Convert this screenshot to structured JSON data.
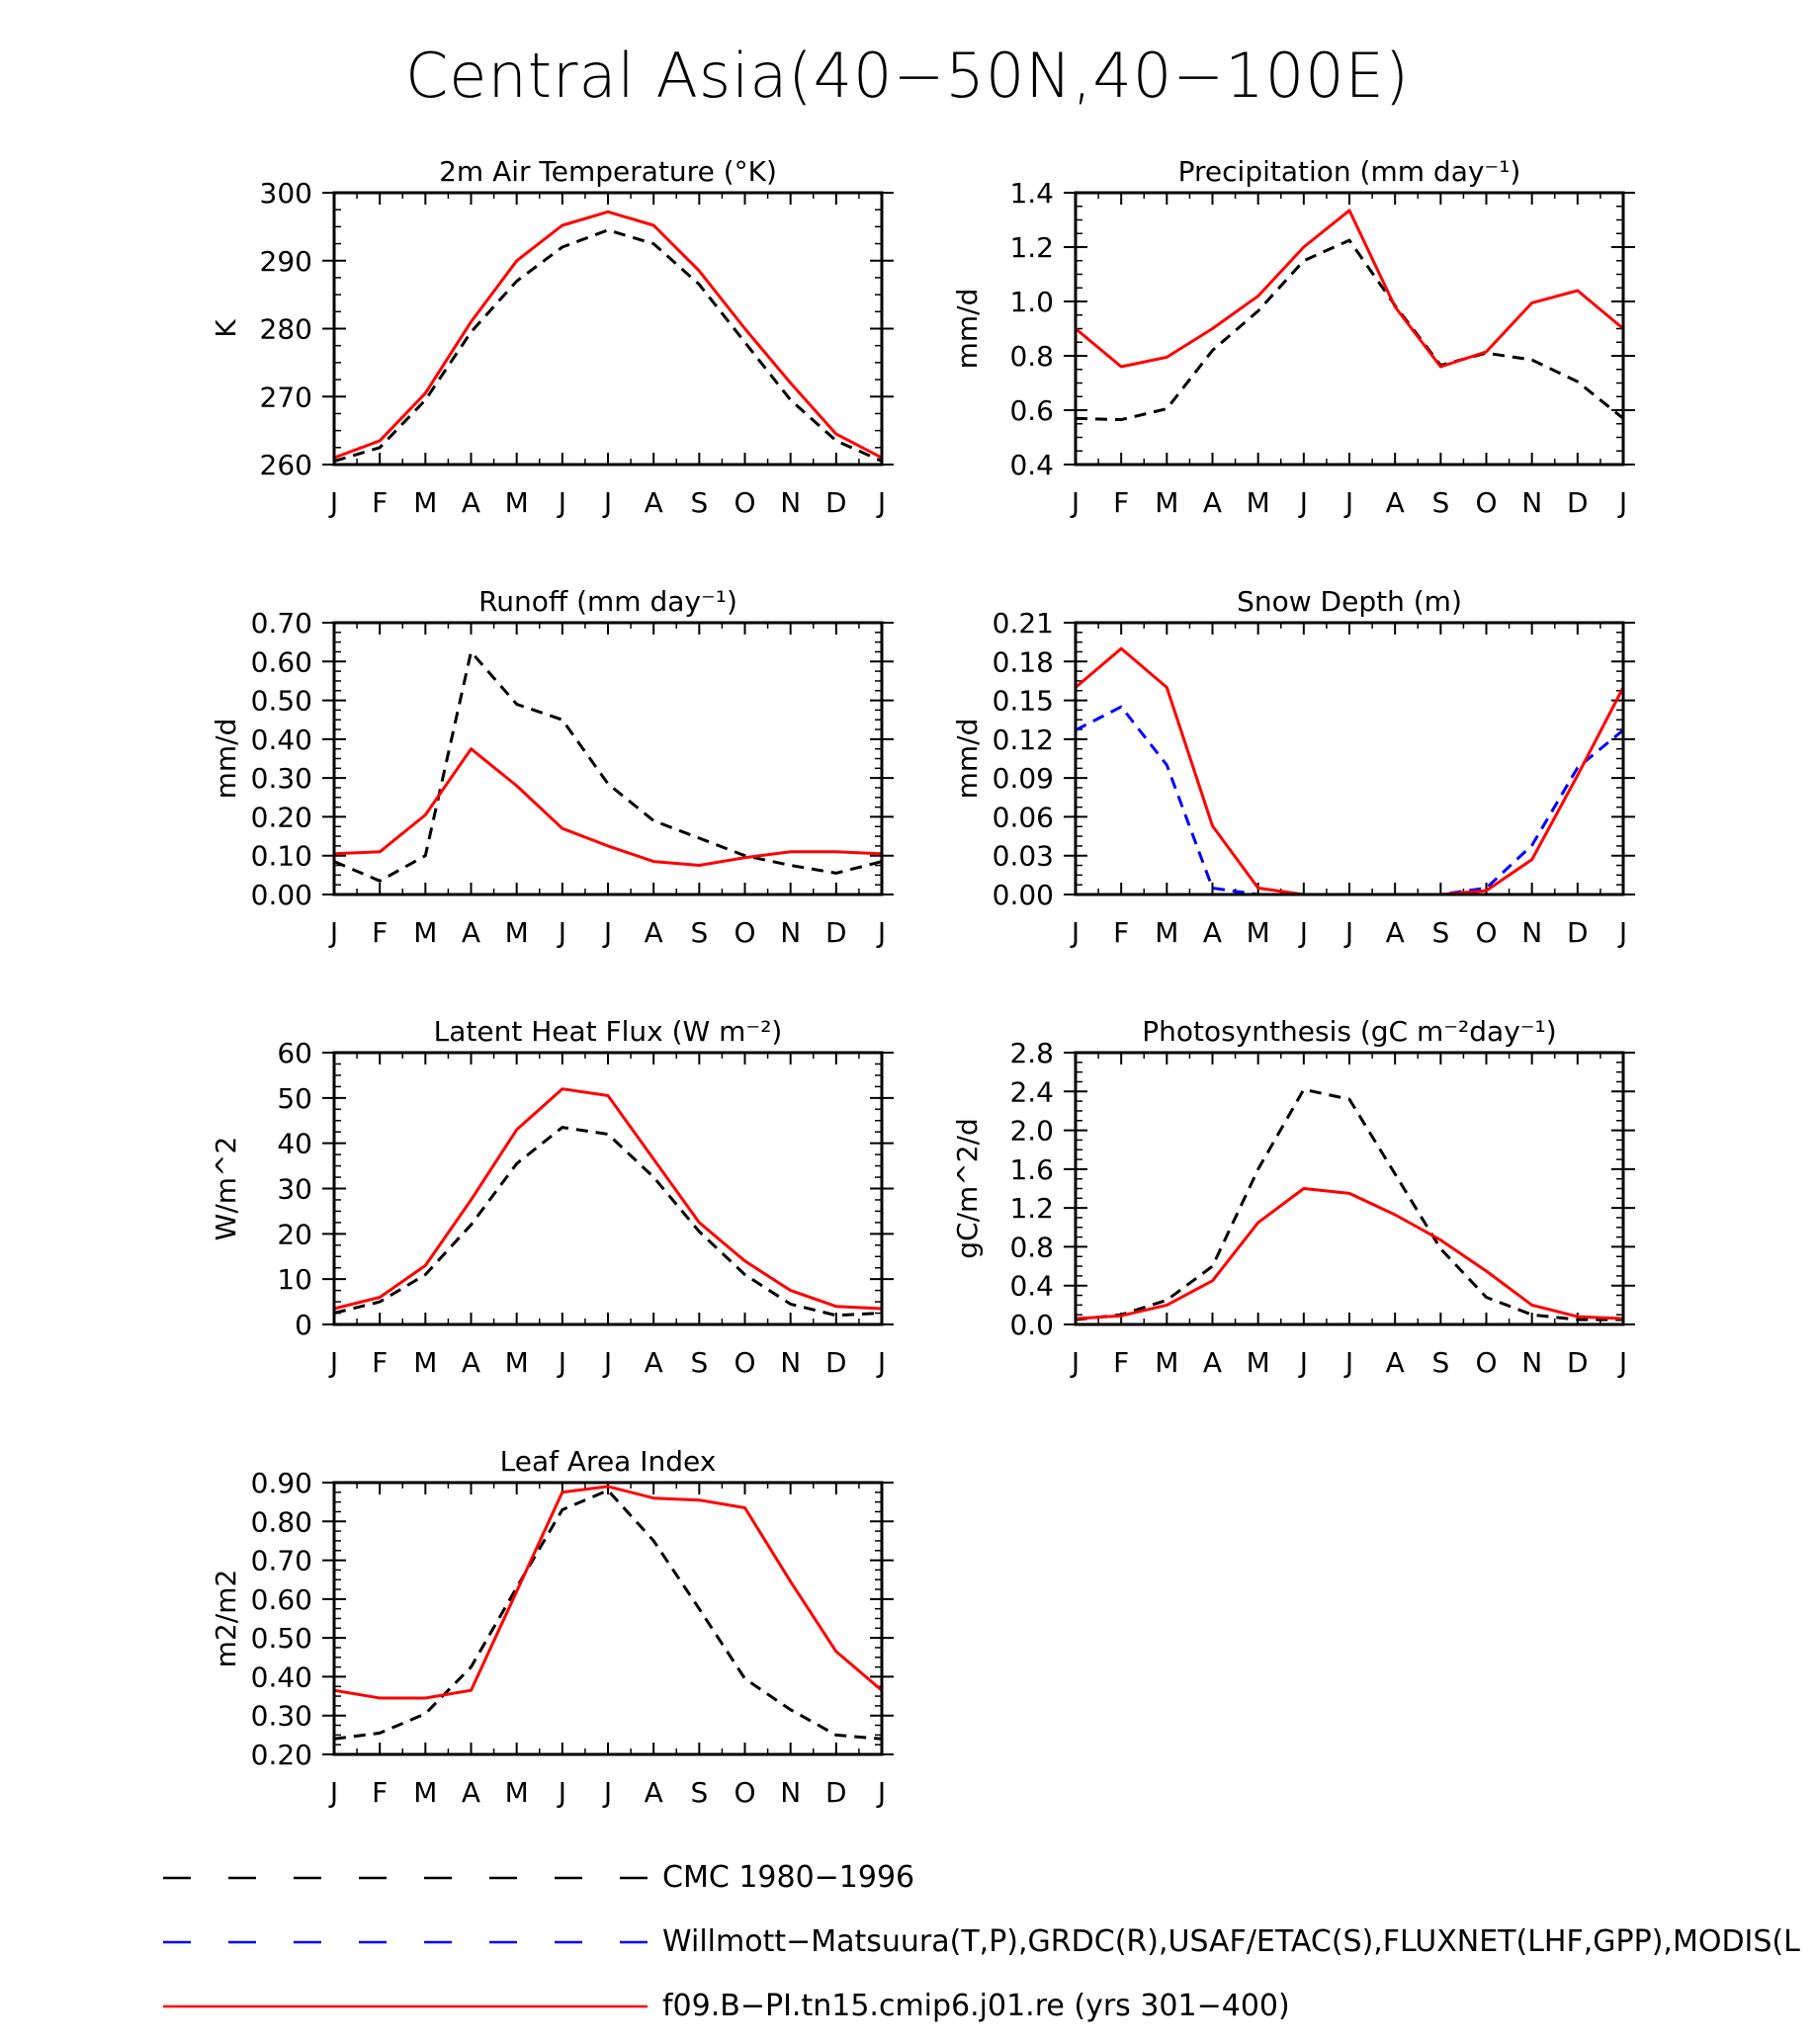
{
  "title": "Central Asia(40−50N,40−100E)",
  "colors": {
    "obs": "#000000",
    "obs2": "#0000ff",
    "model": "#ff0000"
  },
  "months": [
    "J",
    "F",
    "M",
    "A",
    "M",
    "J",
    "J",
    "A",
    "S",
    "O",
    "N",
    "D",
    "J"
  ],
  "legend": [
    {
      "label": "CMC 1980−1996",
      "color": "#000000",
      "style": "dashed"
    },
    {
      "label": "Willmott−Matsuura(T,P),GRDC(R),USAF/ETAC(S),FLUXNET(LHF,GPP),MODIS(L",
      "color": "#0000ff",
      "style": "dashed"
    },
    {
      "label": "f09.B−PI.tn15.cmip6.j01.re (yrs 301−400)",
      "color": "#ff0000",
      "style": "solid"
    }
  ],
  "chart_data": [
    {
      "type": "line",
      "title": "2m Air Temperature (°K)",
      "ylabel": "K",
      "ylim": [
        260,
        300
      ],
      "yticks": [
        "260",
        "270",
        "280",
        "290",
        "300"
      ],
      "x": [
        "J",
        "F",
        "M",
        "A",
        "M",
        "J",
        "J",
        "A",
        "S",
        "O",
        "N",
        "D",
        "J"
      ],
      "series": [
        {
          "values": [
            260.5,
            262.5,
            269.5,
            279.5,
            287,
            292,
            294.5,
            292.5,
            286.5,
            278,
            269.5,
            263.5,
            260.5
          ],
          "color": "#000000",
          "dash": true
        },
        {
          "values": [
            261,
            263.5,
            270.5,
            281,
            290,
            295.2,
            297.2,
            295.2,
            288.5,
            280,
            272,
            264.5,
            261
          ],
          "color": "#ff0000",
          "dash": false
        }
      ]
    },
    {
      "type": "line",
      "title": "Precipitation (mm day⁻¹)",
      "ylabel": "mm/d",
      "ylim": [
        0.4,
        1.4
      ],
      "yticks": [
        "0.4",
        "0.6",
        "0.8",
        "1.0",
        "1.2",
        "1.4"
      ],
      "x": [
        "J",
        "F",
        "M",
        "A",
        "M",
        "J",
        "J",
        "A",
        "S",
        "O",
        "N",
        "D",
        "J"
      ],
      "series": [
        {
          "values": [
            0.57,
            0.565,
            0.605,
            0.82,
            0.965,
            1.15,
            1.225,
            0.985,
            0.765,
            0.81,
            0.785,
            0.705,
            0.57
          ],
          "color": "#000000",
          "dash": true
        },
        {
          "values": [
            0.9,
            0.76,
            0.795,
            0.9,
            1.02,
            1.2,
            1.335,
            0.98,
            0.76,
            0.815,
            0.995,
            1.04,
            0.9
          ],
          "color": "#ff0000",
          "dash": false
        }
      ]
    },
    {
      "type": "line",
      "title": "Runoff (mm day⁻¹)",
      "ylabel": "mm/d",
      "ylim": [
        0,
        0.7
      ],
      "yticks": [
        "0.00",
        "0.10",
        "0.20",
        "0.30",
        "0.40",
        "0.50",
        "0.60",
        "0.70"
      ],
      "x": [
        "J",
        "F",
        "M",
        "A",
        "M",
        "J",
        "J",
        "A",
        "S",
        "O",
        "N",
        "D",
        "J"
      ],
      "series": [
        {
          "values": [
            0.085,
            0.035,
            0.1,
            0.625,
            0.49,
            0.45,
            0.285,
            0.19,
            0.145,
            0.1,
            0.075,
            0.055,
            0.085
          ],
          "color": "#000000",
          "dash": true
        },
        {
          "values": [
            0.105,
            0.11,
            0.205,
            0.375,
            0.28,
            0.17,
            0.125,
            0.085,
            0.075,
            0.095,
            0.11,
            0.11,
            0.105
          ],
          "color": "#ff0000",
          "dash": false
        }
      ]
    },
    {
      "type": "line",
      "title": "Snow Depth (m)",
      "ylabel": "mm/d",
      "ylim": [
        0,
        0.21
      ],
      "yticks": [
        "0.00",
        "0.03",
        "0.06",
        "0.09",
        "0.12",
        "0.15",
        "0.18",
        "0.21"
      ],
      "x": [
        "J",
        "F",
        "M",
        "A",
        "M",
        "J",
        "J",
        "A",
        "S",
        "O",
        "N",
        "D",
        "J"
      ],
      "series": [
        {
          "values": [
            0,
            0,
            0,
            0,
            0,
            0,
            0,
            0,
            0,
            0,
            0,
            0,
            0
          ],
          "color": "#000000",
          "dash": true
        },
        {
          "values": [
            0.127,
            0.145,
            0.1,
            0.005,
            0,
            0,
            0,
            0,
            0,
            0.005,
            0.038,
            0.098,
            0.127
          ],
          "color": "#0000ff",
          "dash": true
        },
        {
          "values": [
            0.16,
            0.19,
            0.16,
            0.053,
            0.005,
            0,
            0,
            0,
            0,
            0.003,
            0.027,
            0.092,
            0.16
          ],
          "color": "#ff0000",
          "dash": false
        }
      ]
    },
    {
      "type": "line",
      "title": "Latent Heat Flux (W m⁻²)",
      "ylabel": "W/m^2",
      "ylim": [
        0,
        60
      ],
      "yticks": [
        "0",
        "10",
        "20",
        "30",
        "40",
        "50",
        "60"
      ],
      "x": [
        "J",
        "F",
        "M",
        "A",
        "M",
        "J",
        "J",
        "A",
        "S",
        "O",
        "N",
        "D",
        "J"
      ],
      "series": [
        {
          "values": [
            2.5,
            5,
            11,
            22,
            35.5,
            43.5,
            42,
            32.5,
            20.5,
            11,
            4.5,
            2,
            2.5
          ],
          "color": "#000000",
          "dash": true
        },
        {
          "values": [
            3.5,
            6,
            13,
            27.5,
            43,
            52,
            50.5,
            36.5,
            22.5,
            14,
            7.5,
            4,
            3.5
          ],
          "color": "#ff0000",
          "dash": false
        }
      ]
    },
    {
      "type": "line",
      "title": "Photosynthesis (gC m⁻²day⁻¹)",
      "ylabel": "gC/m^2/d",
      "ylim": [
        0,
        2.8
      ],
      "yticks": [
        "0.0",
        "0.4",
        "0.8",
        "1.2",
        "1.6",
        "2.0",
        "2.4",
        "2.8"
      ],
      "x": [
        "J",
        "F",
        "M",
        "A",
        "M",
        "J",
        "J",
        "A",
        "S",
        "O",
        "N",
        "D",
        "J"
      ],
      "series": [
        {
          "values": [
            0.05,
            0.1,
            0.25,
            0.6,
            1.6,
            2.42,
            2.32,
            1.55,
            0.78,
            0.28,
            0.1,
            0.05,
            0.05
          ],
          "color": "#000000",
          "dash": true
        },
        {
          "values": [
            0.06,
            0.09,
            0.2,
            0.45,
            1.05,
            1.4,
            1.35,
            1.13,
            0.87,
            0.55,
            0.2,
            0.08,
            0.06
          ],
          "color": "#ff0000",
          "dash": false
        }
      ]
    },
    {
      "type": "line",
      "title": "Leaf Area Index",
      "ylabel": "m2/m2",
      "ylim": [
        0.2,
        0.9
      ],
      "yticks": [
        "0.20",
        "0.30",
        "0.40",
        "0.50",
        "0.60",
        "0.70",
        "0.80",
        "0.90"
      ],
      "x": [
        "J",
        "F",
        "M",
        "A",
        "M",
        "J",
        "J",
        "A",
        "S",
        "O",
        "N",
        "D",
        "J"
      ],
      "series": [
        {
          "values": [
            0.24,
            0.255,
            0.305,
            0.425,
            0.63,
            0.83,
            0.88,
            0.75,
            0.575,
            0.395,
            0.315,
            0.25,
            0.24
          ],
          "color": "#000000",
          "dash": true
        },
        {
          "values": [
            0.365,
            0.345,
            0.345,
            0.365,
            0.62,
            0.875,
            0.89,
            0.86,
            0.855,
            0.835,
            0.645,
            0.465,
            0.365
          ],
          "color": "#ff0000",
          "dash": false
        }
      ]
    }
  ]
}
